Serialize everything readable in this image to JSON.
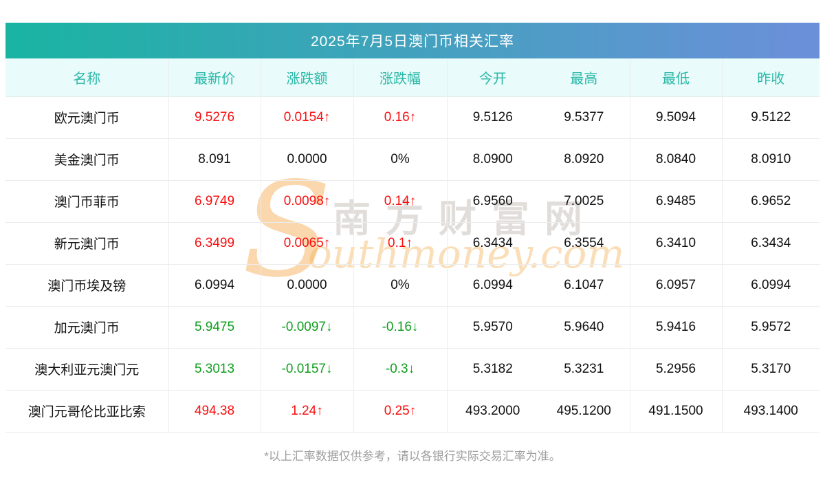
{
  "chart_data": {
    "type": "table",
    "title": "2025年7月5日澳门币相关汇率",
    "columns": [
      "名称",
      "最新价",
      "涨跌额",
      "涨跌幅",
      "今开",
      "最高",
      "最低",
      "昨收"
    ],
    "rows": [
      {
        "name": "欧元澳门币",
        "latest": "9.5276",
        "change": "0.0154↑",
        "pct": "0.16↑",
        "open": "9.5126",
        "high": "9.5377",
        "low": "9.5094",
        "prev": "9.5122",
        "trend": "up"
      },
      {
        "name": "美金澳门币",
        "latest": "8.091",
        "change": "0.0000",
        "pct": "0%",
        "open": "8.0900",
        "high": "8.0920",
        "low": "8.0840",
        "prev": "8.0910",
        "trend": "flat"
      },
      {
        "name": "澳门币菲币",
        "latest": "6.9749",
        "change": "0.0098↑",
        "pct": "0.14↑",
        "open": "6.9560",
        "high": "7.0025",
        "low": "6.9485",
        "prev": "6.9652",
        "trend": "up"
      },
      {
        "name": "新元澳门币",
        "latest": "6.3499",
        "change": "0.0065↑",
        "pct": "0.1↑",
        "open": "6.3434",
        "high": "6.3554",
        "low": "6.3410",
        "prev": "6.3434",
        "trend": "up"
      },
      {
        "name": "澳门币埃及镑",
        "latest": "6.0994",
        "change": "0.0000",
        "pct": "0%",
        "open": "6.0994",
        "high": "6.1047",
        "low": "6.0957",
        "prev": "6.0994",
        "trend": "flat"
      },
      {
        "name": "加元澳门币",
        "latest": "5.9475",
        "change": "-0.0097↓",
        "pct": "-0.16↓",
        "open": "5.9570",
        "high": "5.9640",
        "low": "5.9416",
        "prev": "5.9572",
        "trend": "down"
      },
      {
        "name": "澳大利亚元澳门元",
        "latest": "5.3013",
        "change": "-0.0157↓",
        "pct": "-0.3↓",
        "open": "5.3182",
        "high": "5.3231",
        "low": "5.2956",
        "prev": "5.3170",
        "trend": "down"
      },
      {
        "name": "澳门元哥伦比亚比索",
        "latest": "494.38",
        "change": "1.24↑",
        "pct": "0.25↑",
        "open": "493.2000",
        "high": "495.1200",
        "low": "491.1500",
        "prev": "493.1400",
        "trend": "up"
      }
    ],
    "footnote": "*以上汇率数据仅供参考，请以各银行实际交易汇率为准。"
  },
  "watermark": {
    "s_letter": "S",
    "cn": "南方财富网",
    "en": "outhmoney.com"
  },
  "colors": {
    "up": "#fa0d0d",
    "down": "#0f9e1e",
    "neutral": "#111111",
    "title_gradient_left": "#19b4a2",
    "title_gradient_right": "#6c8fda",
    "header_bg": "#e9fbfa",
    "header_text": "#2bb8a8",
    "footnote_gray": "#9e9e9e",
    "watermark_orange": "#f5b05a",
    "watermark_gray": "#bab4ae"
  }
}
